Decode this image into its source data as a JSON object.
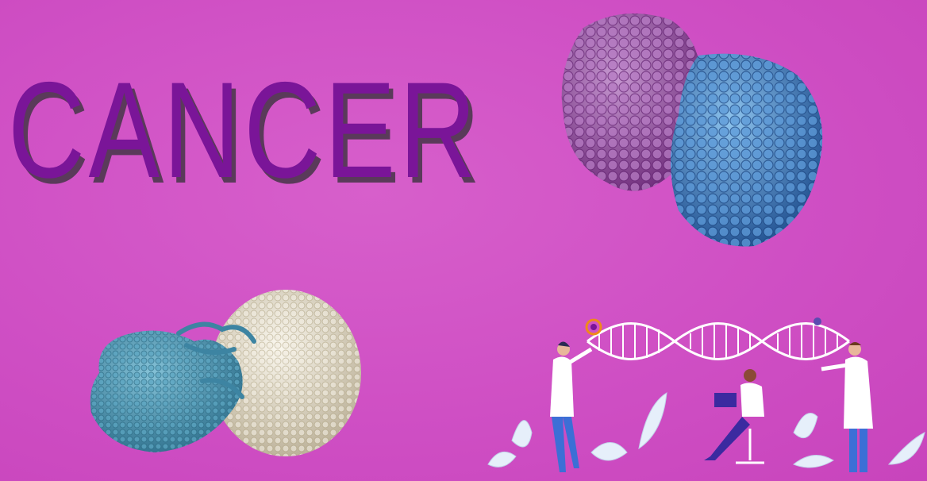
{
  "title": "CANCER",
  "colors": {
    "background": "#cf4fc4",
    "title": "#7a1598",
    "protein_a": "#9a4aa6",
    "protein_b": "#3f7fc6",
    "cell_tumor": "#4a95b0",
    "cell_tcell": "#e8e2d3"
  },
  "illustrations": [
    "protein-complex",
    "immune-cell-attack",
    "dna-research-scene"
  ]
}
